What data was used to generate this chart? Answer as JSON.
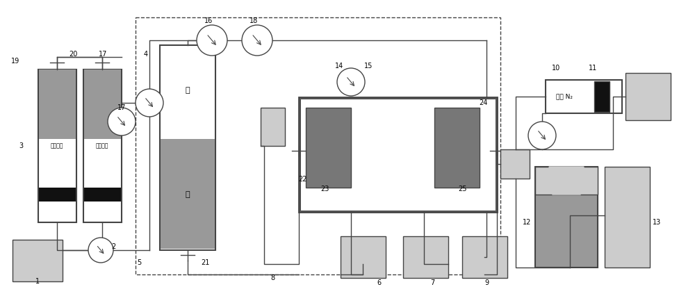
{
  "fig_width": 10.0,
  "fig_height": 4.26,
  "dpi": 100,
  "bg": "#ffffff",
  "lc": "#444444",
  "gray": "#999999",
  "dgray": "#777777",
  "lgray": "#cccccc",
  "blk": "#111111",
  "xlim": [
    0,
    1000
  ],
  "ylim": [
    0,
    426
  ]
}
